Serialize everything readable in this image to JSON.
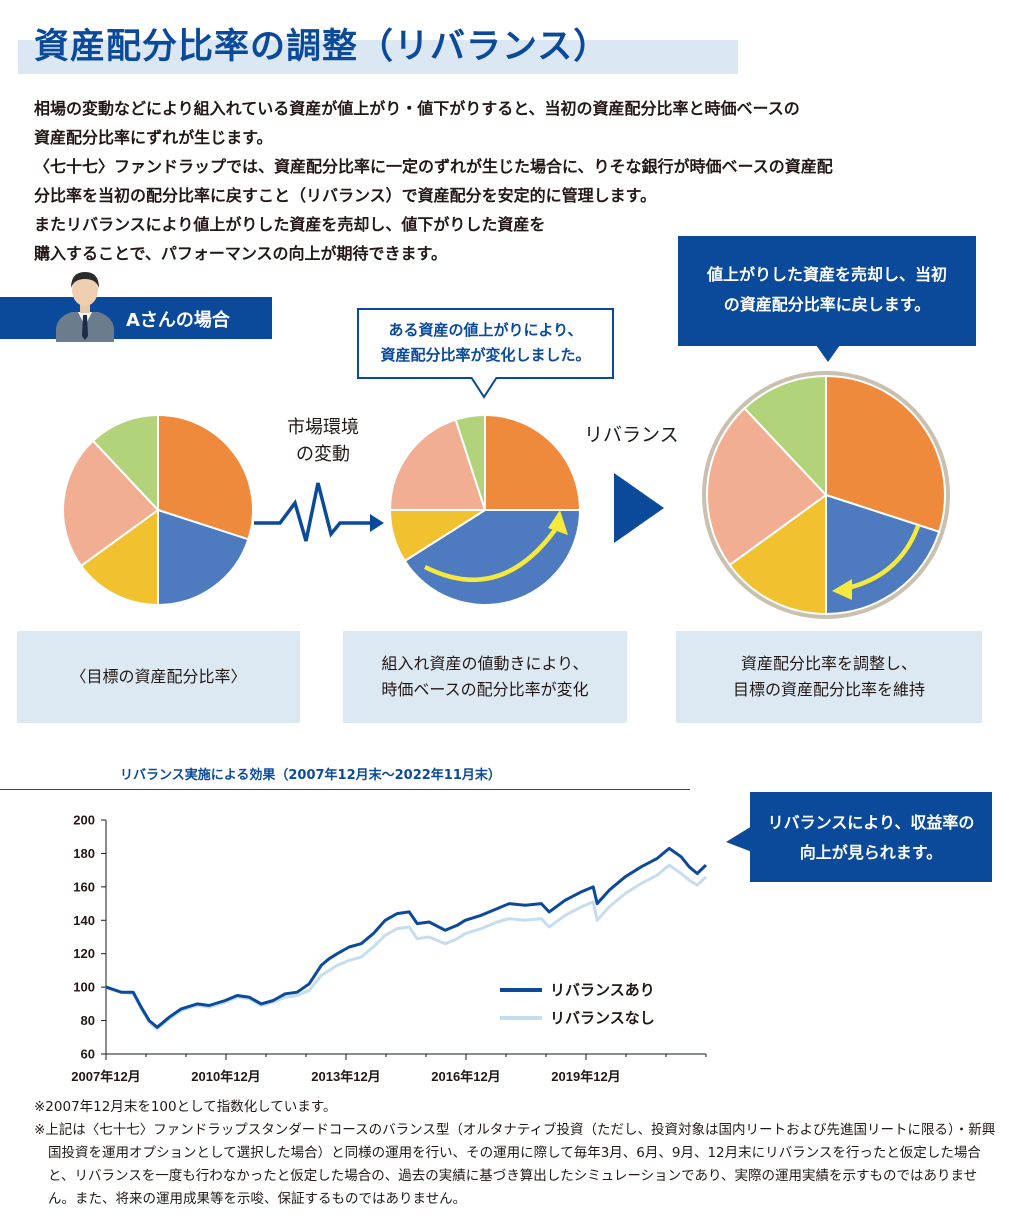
{
  "title": "資産配分比率の調整（リバランス）",
  "intro": [
    "相場の変動などにより組入れている資産が値上がり・値下がりすると、当初の資産配分比率と時価ベースの",
    "資産配分比率にずれが生じます。",
    "〈七十七〉ファンドラップでは、資産配分比率に一定のずれが生じた場合に、りそな銀行が時価ベースの資産配",
    "分比率を当初の配分比率に戻すこと（リバランス）で資産配分を安定的に管理します。",
    "またリバランスにより値上がりした資産を売却し、値下がりした資産を",
    "購入することで、パフォーマンスの向上が期待できます。"
  ],
  "person": {
    "label": "Aさんの場合",
    "icon": "businessman-icon"
  },
  "bubbles": {
    "change": [
      "ある資産の値上がりにより、",
      "資産配分比率が変化しました。"
    ],
    "sell": [
      "値上がりした資産を売却し、当初",
      "の資産配分比率に戻します。"
    ],
    "improve": [
      "リバランスにより、収益率の",
      "向上が見られます。"
    ]
  },
  "labels": {
    "market": [
      "市場環境",
      "の変動"
    ],
    "rebalance": "リバランス"
  },
  "cards": {
    "target": "〈目標の資産配分比率〉",
    "change": [
      "組入れ資産の値動きにより、",
      "時価ベースの配分比率が変化"
    ],
    "adjust": [
      "資産配分比率を調整し、",
      "目標の資産配分比率を維持"
    ]
  },
  "colors": {
    "orange": "#ef8a3c",
    "blue": "#4e7bbf",
    "yellow": "#f2c12f",
    "salmon": "#f2ae92",
    "green": "#b2d37a",
    "navy": "#0b4a9b",
    "light": "#c6ddef",
    "arrow": "#f5ea3b",
    "ring": "#c9c0b0"
  },
  "pies": [
    {
      "name": "target",
      "slices": [
        {
          "asset": "orange",
          "value": 30
        },
        {
          "asset": "blue",
          "value": 20
        },
        {
          "asset": "yellow",
          "value": 15
        },
        {
          "asset": "salmon",
          "value": 23
        },
        {
          "asset": "green",
          "value": 12
        }
      ]
    },
    {
      "name": "drifted",
      "slices": [
        {
          "asset": "orange",
          "value": 25
        },
        {
          "asset": "blue",
          "value": 41
        },
        {
          "asset": "yellow",
          "value": 9
        },
        {
          "asset": "salmon",
          "value": 20
        },
        {
          "asset": "green",
          "value": 5
        }
      ]
    },
    {
      "name": "rebalanced",
      "slices": [
        {
          "asset": "orange",
          "value": 30
        },
        {
          "asset": "blue",
          "value": 20
        },
        {
          "asset": "yellow",
          "value": 15
        },
        {
          "asset": "salmon",
          "value": 23
        },
        {
          "asset": "green",
          "value": 12
        }
      ]
    }
  ],
  "chart_data": {
    "type": "line",
    "title": "リバランス実施による効果（2007年12月末～2022年11月末）",
    "xlabel": "",
    "ylabel": "",
    "x_start": 2007.92,
    "x_end": 2022.92,
    "xlim": [
      2007.92,
      2022.92
    ],
    "ylim": [
      60,
      200
    ],
    "yticks": [
      60,
      80,
      100,
      120,
      140,
      160,
      180,
      200
    ],
    "xticks": [
      {
        "x": 2007.92,
        "label": "2007年12月"
      },
      {
        "x": 2010.92,
        "label": "2010年12月"
      },
      {
        "x": 2013.92,
        "label": "2013年12月"
      },
      {
        "x": 2016.92,
        "label": "2016年12月"
      },
      {
        "x": 2019.92,
        "label": "2019年12月"
      }
    ],
    "legend_position": "bottom-right",
    "series": [
      {
        "name": "リバランスあり",
        "color": "#0b4a9b",
        "points": [
          [
            2007.92,
            100
          ],
          [
            2008.3,
            97
          ],
          [
            2008.6,
            97
          ],
          [
            2008.8,
            88
          ],
          [
            2009.0,
            80
          ],
          [
            2009.2,
            76
          ],
          [
            2009.5,
            82
          ],
          [
            2009.8,
            87
          ],
          [
            2010.2,
            90
          ],
          [
            2010.5,
            89
          ],
          [
            2010.9,
            92
          ],
          [
            2011.2,
            95
          ],
          [
            2011.5,
            94
          ],
          [
            2011.8,
            90
          ],
          [
            2012.1,
            92
          ],
          [
            2012.4,
            96
          ],
          [
            2012.7,
            97
          ],
          [
            2013.0,
            102
          ],
          [
            2013.3,
            113
          ],
          [
            2013.5,
            117
          ],
          [
            2013.7,
            120
          ],
          [
            2014.0,
            124
          ],
          [
            2014.3,
            126
          ],
          [
            2014.6,
            132
          ],
          [
            2014.9,
            140
          ],
          [
            2015.2,
            144
          ],
          [
            2015.5,
            145
          ],
          [
            2015.7,
            138
          ],
          [
            2016.0,
            139
          ],
          [
            2016.4,
            134
          ],
          [
            2016.7,
            137
          ],
          [
            2016.9,
            140
          ],
          [
            2017.3,
            143
          ],
          [
            2017.7,
            147
          ],
          [
            2018.0,
            150
          ],
          [
            2018.4,
            149
          ],
          [
            2018.8,
            150
          ],
          [
            2019.0,
            145
          ],
          [
            2019.4,
            152
          ],
          [
            2019.8,
            157
          ],
          [
            2020.1,
            160
          ],
          [
            2020.2,
            150
          ],
          [
            2020.5,
            158
          ],
          [
            2020.9,
            166
          ],
          [
            2021.3,
            172
          ],
          [
            2021.7,
            177
          ],
          [
            2022.0,
            183
          ],
          [
            2022.3,
            178
          ],
          [
            2022.5,
            172
          ],
          [
            2022.7,
            168
          ],
          [
            2022.92,
            173
          ]
        ]
      },
      {
        "name": "リバランスなし",
        "color": "#c6ddef",
        "points": [
          [
            2007.92,
            100
          ],
          [
            2008.3,
            97
          ],
          [
            2008.6,
            96
          ],
          [
            2008.8,
            87
          ],
          [
            2009.0,
            79
          ],
          [
            2009.2,
            75
          ],
          [
            2009.5,
            81
          ],
          [
            2009.8,
            86
          ],
          [
            2010.2,
            89
          ],
          [
            2010.5,
            88
          ],
          [
            2010.9,
            91
          ],
          [
            2011.2,
            94
          ],
          [
            2011.5,
            93
          ],
          [
            2011.8,
            89
          ],
          [
            2012.1,
            91
          ],
          [
            2012.4,
            94
          ],
          [
            2012.7,
            95
          ],
          [
            2013.0,
            98
          ],
          [
            2013.3,
            107
          ],
          [
            2013.5,
            110
          ],
          [
            2013.7,
            113
          ],
          [
            2014.0,
            116
          ],
          [
            2014.3,
            118
          ],
          [
            2014.6,
            124
          ],
          [
            2014.9,
            131
          ],
          [
            2015.2,
            135
          ],
          [
            2015.5,
            136
          ],
          [
            2015.7,
            129
          ],
          [
            2016.0,
            130
          ],
          [
            2016.4,
            126
          ],
          [
            2016.7,
            129
          ],
          [
            2016.9,
            132
          ],
          [
            2017.3,
            135
          ],
          [
            2017.7,
            139
          ],
          [
            2018.0,
            141
          ],
          [
            2018.4,
            140
          ],
          [
            2018.8,
            141
          ],
          [
            2019.0,
            136
          ],
          [
            2019.4,
            143
          ],
          [
            2019.8,
            148
          ],
          [
            2020.1,
            151
          ],
          [
            2020.2,
            140
          ],
          [
            2020.5,
            148
          ],
          [
            2020.9,
            156
          ],
          [
            2021.3,
            162
          ],
          [
            2021.7,
            167
          ],
          [
            2022.0,
            173
          ],
          [
            2022.3,
            168
          ],
          [
            2022.5,
            164
          ],
          [
            2022.7,
            161
          ],
          [
            2022.92,
            166
          ]
        ]
      }
    ]
  },
  "notes": [
    "※2007年12月末を100として指数化しています。",
    "※上記は〈七十七〉ファンドラップスタンダードコースのバランス型（オルタナティブ投資（ただし、投資対象は国内リートおよび先進国リートに限る）・新興国投資を運用オプションとして選択した場合）と同様の運用を行い、その運用に際して毎年3月、6月、9月、12月末にリバランスを行ったと仮定した場合と、リバランスを一度も行わなかったと仮定した場合の、過去の実績に基づき算出したシミュレーションであり、実際の運用実績を示すものではありません。また、将来の運用成果等を示唆、保証するものではありません。"
  ]
}
